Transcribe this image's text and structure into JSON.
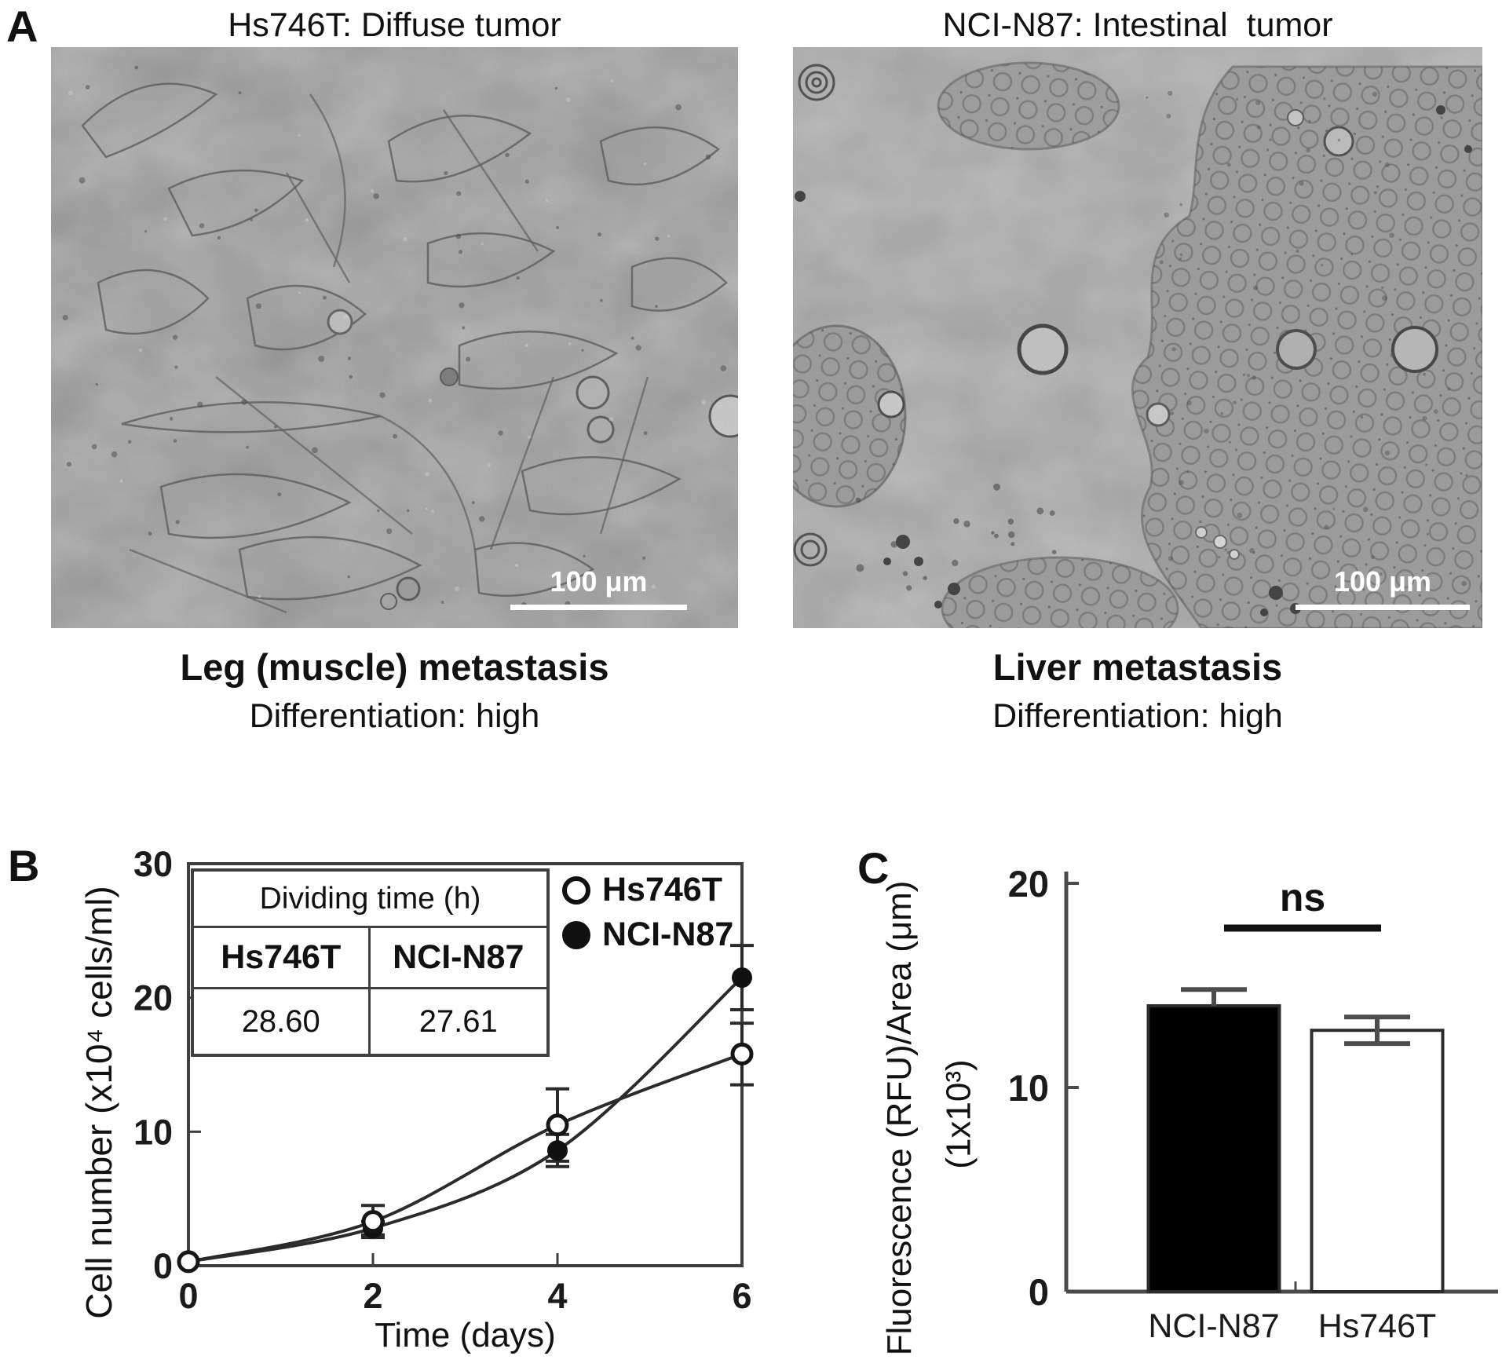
{
  "figure": {
    "panel_a": {
      "label": "A",
      "left": {
        "title": "Hs746T: Diffuse tumor",
        "scale_bar_label": "100 μm",
        "metastasis_site": "Leg (muscle) metastasis",
        "differentiation": "Differentiation: high"
      },
      "right": {
        "title": "NCI-N87: Intestinal  tumor",
        "scale_bar_label": "100 μm",
        "metastasis_site": "Liver metastasis",
        "differentiation": "Differentiation: high"
      }
    },
    "panel_b": {
      "label": "B"
    },
    "panel_c": {
      "label": "C"
    }
  },
  "chart_data": [
    {
      "type": "line",
      "title": "",
      "xlabel": "Time (days)",
      "ylabel": "Cell number (x10⁴ cells/ml)",
      "x": [
        0,
        2,
        4,
        6
      ],
      "xlim": [
        0,
        6
      ],
      "ylim": [
        0,
        30
      ],
      "xticks": [
        0,
        2,
        4,
        6
      ],
      "yticks": [
        0,
        10,
        20,
        30
      ],
      "grid": false,
      "legend_position": "top-right",
      "series": [
        {
          "name": "Hs746T",
          "marker": "open-circle",
          "values": [
            0.3,
            3.3,
            10.5,
            15.8
          ],
          "errors": [
            0,
            1.2,
            2.7,
            2.3
          ]
        },
        {
          "name": "NCI-N87",
          "marker": "filled-circle",
          "values": [
            0.3,
            2.8,
            8.6,
            21.5
          ],
          "errors": [
            0,
            0.5,
            1.2,
            2.4
          ]
        }
      ],
      "inset_table": {
        "title": "Dividing time (h)",
        "columns": [
          "Hs746T",
          "NCI-N87"
        ],
        "values": [
          "28.60",
          "27.61"
        ]
      }
    },
    {
      "type": "bar",
      "categories": [
        "NCI-N87",
        "Hs746T"
      ],
      "values": [
        14.0,
        12.8
      ],
      "errors": [
        0.8,
        0.65
      ],
      "bar_colors": [
        "#000000",
        "#ffffff"
      ],
      "ylabel_line1": "Fluorescence (RFU)/Area (μm)",
      "ylabel_line2": "(1x10³)",
      "ylim": [
        0,
        20
      ],
      "yticks": [
        0,
        10,
        20
      ],
      "grid": false,
      "annotation": "ns"
    }
  ]
}
